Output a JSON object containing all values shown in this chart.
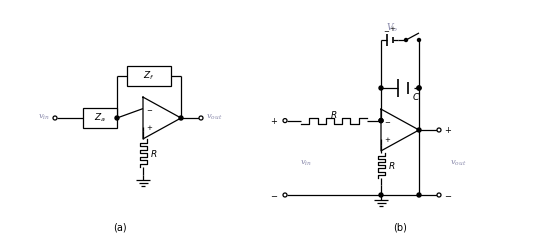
{
  "bg_color": "#ffffff",
  "line_color": "#000000",
  "label_color_gray": "#8888aa",
  "fig_width": 5.34,
  "fig_height": 2.42,
  "dpi": 100,
  "label_a": "(a)",
  "label_b": "(b)"
}
